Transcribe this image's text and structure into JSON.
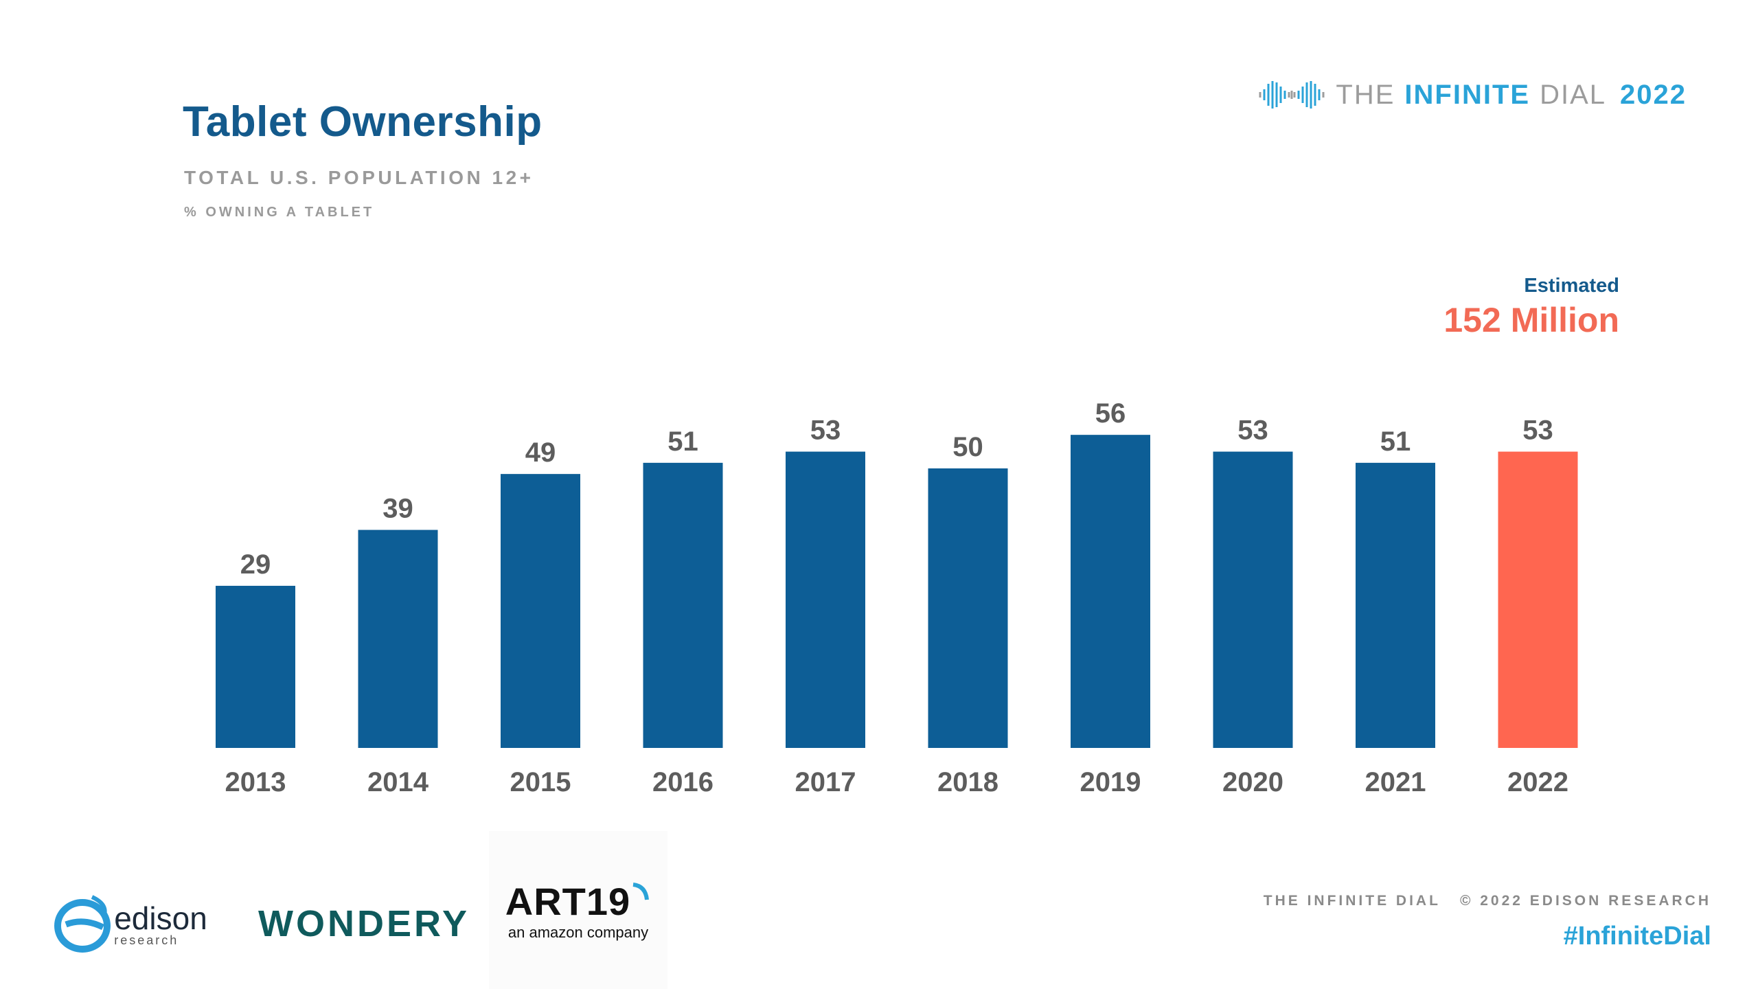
{
  "header": {
    "title": "Tablet Ownership",
    "subtitle": "TOTAL U.S. POPULATION 12+",
    "metric": "% OWNING A TABLET"
  },
  "brand": {
    "part1": "THE",
    "part2": "INFINITE",
    "part3": "DIAL",
    "year": "2022"
  },
  "estimate": {
    "label": "Estimated",
    "value": "152 Million"
  },
  "footer": {
    "left": "THE INFINITE DIAL",
    "right": "© 2022 EDISON RESEARCH",
    "hashtag": "#InfiniteDial"
  },
  "logos": {
    "edison": "edison",
    "edison_sub": "research",
    "wondery": "WONDERY",
    "art19": "ART19",
    "art19_sub": "an amazon company"
  },
  "colors": {
    "bar": "#0d5e96",
    "highlight": "#ff6650"
  },
  "chart_data": {
    "type": "bar",
    "title": "Tablet Ownership",
    "xlabel": "",
    "ylabel": "% owning a tablet",
    "categories": [
      "2013",
      "2014",
      "2015",
      "2016",
      "2017",
      "2018",
      "2019",
      "2020",
      "2021",
      "2022"
    ],
    "values": [
      29,
      39,
      49,
      51,
      53,
      50,
      56,
      53,
      51,
      53
    ],
    "highlight_index": 9,
    "ylim": [
      0,
      56
    ],
    "grid": false
  }
}
